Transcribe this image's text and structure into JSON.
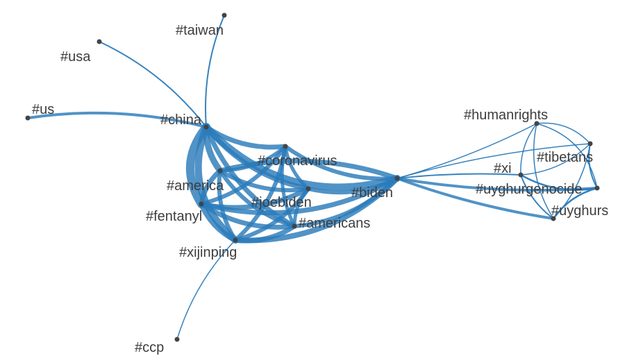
{
  "graph": {
    "node_color": "#444444",
    "edge_color": "#2b7bba",
    "nodes": [
      {
        "id": "china",
        "label": "#china"
      },
      {
        "id": "usa",
        "label": "#usa"
      },
      {
        "id": "taiwan",
        "label": "#taiwan"
      },
      {
        "id": "us",
        "label": "#us"
      },
      {
        "id": "america",
        "label": "#america"
      },
      {
        "id": "fentanyl",
        "label": "#fentanyl"
      },
      {
        "id": "xijinping",
        "label": "#xijinping"
      },
      {
        "id": "ccp",
        "label": "#ccp"
      },
      {
        "id": "coronavirus",
        "label": "#coronavirus"
      },
      {
        "id": "joebiden",
        "label": "#joebiden"
      },
      {
        "id": "americans",
        "label": "#americans"
      },
      {
        "id": "biden",
        "label": "#biden"
      },
      {
        "id": "humanrights",
        "label": "#humanrights"
      },
      {
        "id": "xi",
        "label": "#xi"
      },
      {
        "id": "tibetans",
        "label": "#tibetans"
      },
      {
        "id": "uyghurgenocide",
        "label": "#uyghurgenocide"
      },
      {
        "id": "uyghurs",
        "label": "#uyghurs"
      }
    ],
    "edges": [
      {
        "source": "china",
        "target": "usa",
        "weight": 2
      },
      {
        "source": "china",
        "target": "taiwan",
        "weight": 2
      },
      {
        "source": "china",
        "target": "us",
        "weight": 4
      },
      {
        "source": "xijinping",
        "target": "ccp",
        "weight": 1.5
      },
      {
        "source": "china",
        "target": "biden",
        "weight": 10
      },
      {
        "source": "china",
        "target": "america",
        "weight": 9
      },
      {
        "source": "china",
        "target": "fentanyl",
        "weight": 12
      },
      {
        "source": "china",
        "target": "xijinping",
        "weight": 10
      },
      {
        "source": "china",
        "target": "coronavirus",
        "weight": 7
      },
      {
        "source": "china",
        "target": "joebiden",
        "weight": 7
      },
      {
        "source": "china",
        "target": "americans",
        "weight": 7
      },
      {
        "source": "america",
        "target": "biden",
        "weight": 7
      },
      {
        "source": "america",
        "target": "fentanyl",
        "weight": 7
      },
      {
        "source": "america",
        "target": "xijinping",
        "weight": 6
      },
      {
        "source": "america",
        "target": "coronavirus",
        "weight": 5
      },
      {
        "source": "america",
        "target": "joebiden",
        "weight": 6
      },
      {
        "source": "america",
        "target": "americans",
        "weight": 6
      },
      {
        "source": "fentanyl",
        "target": "biden",
        "weight": 7
      },
      {
        "source": "fentanyl",
        "target": "xijinping",
        "weight": 8
      },
      {
        "source": "fentanyl",
        "target": "coronavirus",
        "weight": 6
      },
      {
        "source": "fentanyl",
        "target": "joebiden",
        "weight": 7
      },
      {
        "source": "fentanyl",
        "target": "americans",
        "weight": 7
      },
      {
        "source": "xijinping",
        "target": "biden",
        "weight": 8
      },
      {
        "source": "xijinping",
        "target": "coronavirus",
        "weight": 6
      },
      {
        "source": "xijinping",
        "target": "joebiden",
        "weight": 6
      },
      {
        "source": "xijinping",
        "target": "americans",
        "weight": 7
      },
      {
        "source": "coronavirus",
        "target": "biden",
        "weight": 6
      },
      {
        "source": "coronavirus",
        "target": "joebiden",
        "weight": 5
      },
      {
        "source": "coronavirus",
        "target": "americans",
        "weight": 5
      },
      {
        "source": "joebiden",
        "target": "biden",
        "weight": 6
      },
      {
        "source": "joebiden",
        "target": "americans",
        "weight": 5
      },
      {
        "source": "americans",
        "target": "biden",
        "weight": 6
      },
      {
        "source": "biden",
        "target": "uyghurgenocide",
        "weight": 4
      },
      {
        "source": "biden",
        "target": "uyghurs",
        "weight": 4
      },
      {
        "source": "biden",
        "target": "xi",
        "weight": 2
      },
      {
        "source": "biden",
        "target": "humanrights",
        "weight": 1.5
      },
      {
        "source": "biden",
        "target": "tibetans",
        "weight": 1.5
      },
      {
        "source": "humanrights",
        "target": "tibetans",
        "weight": 1.5
      },
      {
        "source": "humanrights",
        "target": "uyghurgenocide",
        "weight": 1.5
      },
      {
        "source": "humanrights",
        "target": "uyghurs",
        "weight": 1.5
      },
      {
        "source": "humanrights",
        "target": "xi",
        "weight": 1.5
      },
      {
        "source": "xi",
        "target": "tibetans",
        "weight": 1.5
      },
      {
        "source": "xi",
        "target": "uyghurgenocide",
        "weight": 2.5
      },
      {
        "source": "xi",
        "target": "uyghurs",
        "weight": 2
      },
      {
        "source": "tibetans",
        "target": "uyghurgenocide",
        "weight": 2
      },
      {
        "source": "tibetans",
        "target": "uyghurs",
        "weight": 1.5
      },
      {
        "source": "uyghurgenocide",
        "target": "uyghurs",
        "weight": 2.5
      }
    ]
  }
}
